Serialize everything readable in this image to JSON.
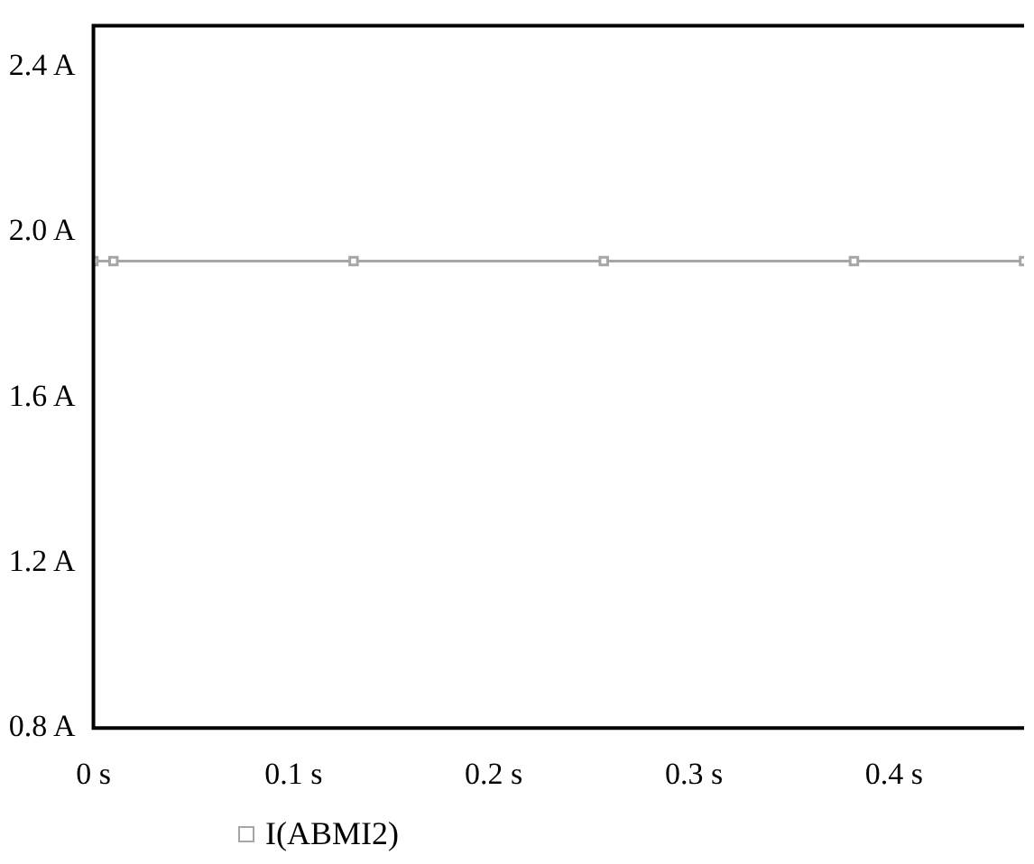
{
  "chart_data": {
    "type": "line",
    "x": [
      0,
      0.01,
      0.13,
      0.255,
      0.38,
      0.465
    ],
    "series": [
      {
        "name": "I(ABMI2)",
        "color": "#a6a6a6",
        "values": [
          1.93,
          1.93,
          1.93,
          1.93,
          1.93,
          1.93
        ]
      }
    ],
    "xlim": [
      0,
      0.465
    ],
    "xticks": [
      {
        "value": 0,
        "label": "0 s"
      },
      {
        "value": 0.1,
        "label": "0.1 s"
      },
      {
        "value": 0.2,
        "label": "0.2 s"
      },
      {
        "value": 0.3,
        "label": "0.3 s"
      },
      {
        "value": 0.4,
        "label": "0.4 s"
      }
    ],
    "ylim": [
      0.8,
      2.5
    ],
    "yticks": [
      {
        "value": 0.8,
        "label": "0.8 A"
      },
      {
        "value": 1.2,
        "label": "1.2 A"
      },
      {
        "value": 1.6,
        "label": "1.6 A"
      },
      {
        "value": 2.0,
        "label": "2.0 A"
      },
      {
        "value": 2.4,
        "label": "2.4 A"
      }
    ],
    "grid": false,
    "legend": "bottom left",
    "marker": "square",
    "line_style": "solid"
  }
}
